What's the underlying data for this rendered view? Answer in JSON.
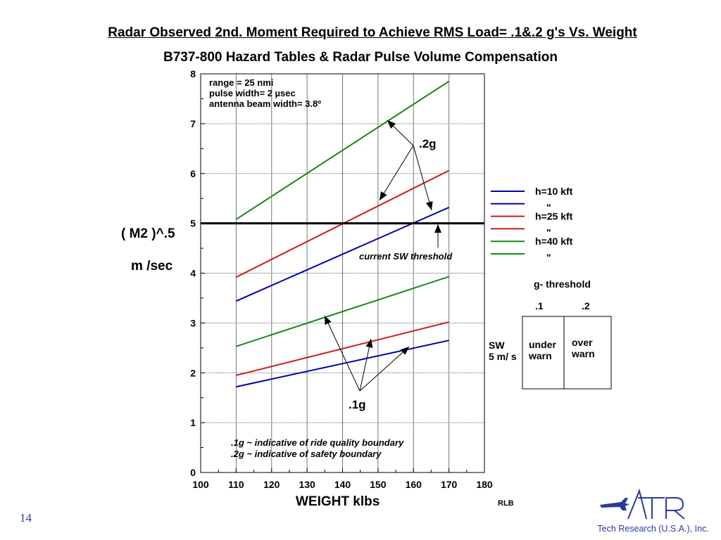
{
  "slide": {
    "title": "Radar Observed 2nd. Moment Required to Achieve RMS Load= .1&.2 g's Vs. Weight",
    "subtitle": "B737-800 Hazard Tables & Radar Pulse Volume Compensation",
    "page_number": "14",
    "author_tag": "RLB"
  },
  "chart_data": {
    "type": "line",
    "title": "B737-800 Hazard Tables & Radar Pulse Volume Compensation",
    "ylabel": "( M2 )^.5",
    "yunit": "m /sec",
    "xlabel": "WEIGHT klbs",
    "xlim": [
      100,
      180
    ],
    "ylim": [
      0,
      8
    ],
    "xticks": [
      "100",
      "110",
      "120",
      "130",
      "140",
      "150",
      "160",
      "170",
      "180"
    ],
    "yticks": [
      "0",
      "1",
      "2",
      "3",
      "4",
      "5",
      "6",
      "7",
      "8"
    ],
    "grid": true,
    "series": [
      {
        "name": "h=10 kft",
        "g": ".1g",
        "color": "#0000b4",
        "x": [
          110,
          170
        ],
        "y": [
          1.72,
          2.65
        ]
      },
      {
        "name": "h=25 kft",
        "g": ".1g",
        "color": "#cc1a1a",
        "x": [
          110,
          170
        ],
        "y": [
          1.95,
          3.02
        ]
      },
      {
        "name": "h=40 kft",
        "g": ".1g",
        "color": "#128a12",
        "x": [
          110,
          170
        ],
        "y": [
          2.53,
          3.93
        ]
      },
      {
        "name": "h=10 kft",
        "g": ".2g",
        "color": "#0000b4",
        "x": [
          110,
          170
        ],
        "y": [
          3.44,
          5.32
        ]
      },
      {
        "name": "h=25 kft",
        "g": ".2g",
        "color": "#cc1a1a",
        "x": [
          110,
          170
        ],
        "y": [
          3.92,
          6.06
        ]
      },
      {
        "name": "h=40 kft",
        "g": ".2g",
        "color": "#128a12",
        "x": [
          110,
          170
        ],
        "y": [
          5.08,
          7.85
        ]
      }
    ],
    "threshold": {
      "y": 5.0,
      "label": "current SW threshold",
      "color": "#000000"
    },
    "annotations": {
      "params": [
        "range = 25 nmi",
        "pulse width= 2 µsec",
        "antenna beam width= 3.8º"
      ],
      "label_2g": ".2g",
      "label_1g": ".1g",
      "notes": [
        ".1g ~ indicative of ride quality boundary",
        ".2g ~ indicative of safety boundary"
      ]
    },
    "legend": {
      "placement": "right",
      "entries": [
        {
          "label": "h=10 kft",
          "color": "#0000b4"
        },
        {
          "label": "\"",
          "color": "#0000b4"
        },
        {
          "label": "h=25 kft",
          "color": "#cc1a1a"
        },
        {
          "label": "\"",
          "color": "#cc1a1a"
        },
        {
          "label": "h=40 kft",
          "color": "#128a12"
        },
        {
          "label": "\"",
          "color": "#128a12"
        }
      ]
    },
    "threshold_table": {
      "title": "g- threshold",
      "col1": ".1",
      "col2": ".2",
      "row_label_1": "SW",
      "row_label_2": "5 m/ s",
      "cell1_line1": "under",
      "cell1_line2": "warn",
      "cell2_line1": "over",
      "cell2_line2": "warn"
    }
  },
  "logo": {
    "mark": "ATR",
    "company": "AeroTech Research (U.S.A.), Inc.",
    "color": "#2a3a9a"
  }
}
